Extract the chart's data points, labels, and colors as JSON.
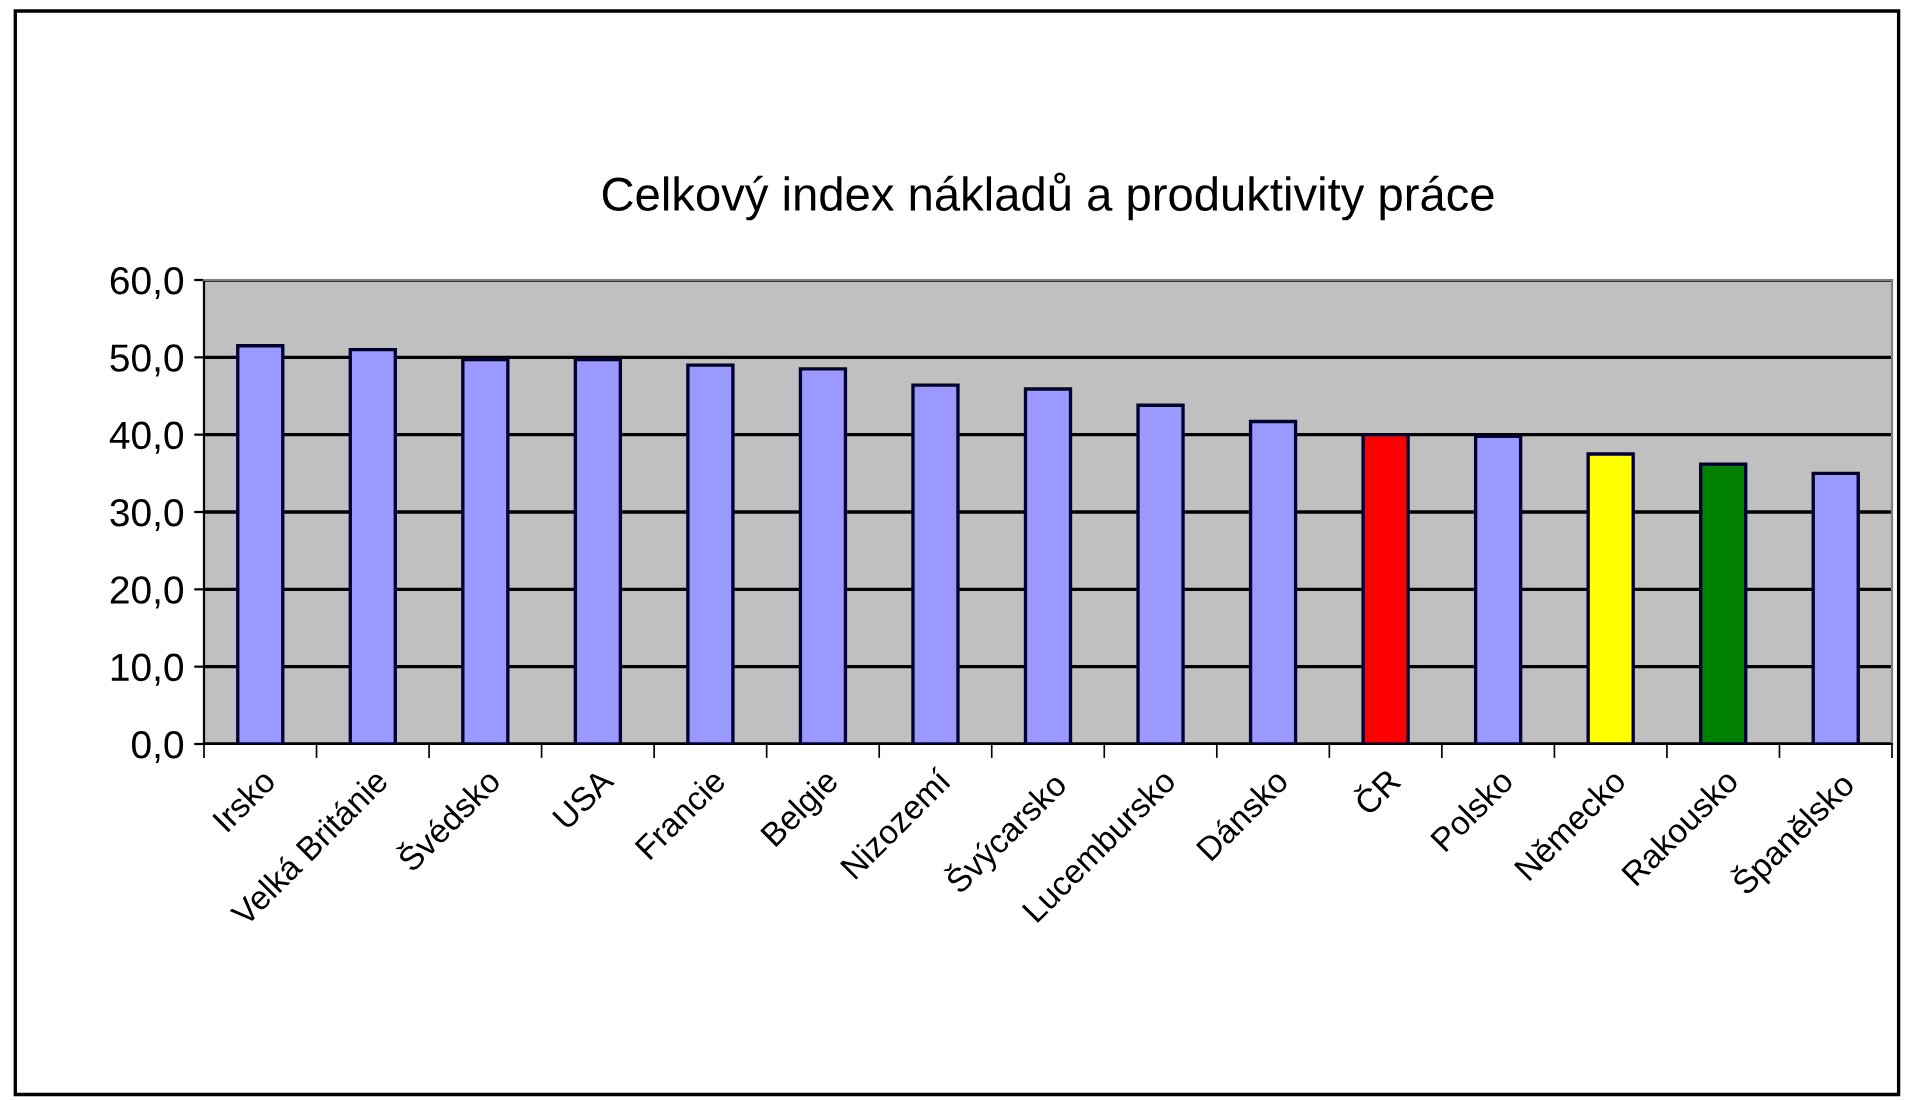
{
  "chart_data": {
    "type": "bar",
    "title": "Celkový index nákladů a produktivity práce",
    "categories": [
      "Irsko",
      "Velká Británie",
      "Švédsko",
      "USA",
      "Francie",
      "Belgie",
      "Nizozemí",
      "Švýcarsko",
      "Lucembursko",
      "Dánsko",
      "ČR",
      "Polsko",
      "Německo",
      "Rakousko",
      "Španělsko"
    ],
    "values": [
      51.5,
      51.0,
      49.7,
      49.7,
      49.0,
      48.5,
      46.4,
      45.9,
      43.8,
      41.7,
      40.0,
      39.8,
      37.5,
      36.2,
      35.0
    ],
    "colors": [
      "#9999ff",
      "#9999ff",
      "#9999ff",
      "#9999ff",
      "#9999ff",
      "#9999ff",
      "#9999ff",
      "#9999ff",
      "#9999ff",
      "#9999ff",
      "#ff0000",
      "#9999ff",
      "#ffff00",
      "#008000",
      "#9999ff"
    ],
    "ylim": [
      0,
      60
    ],
    "yticks": [
      {
        "value": 0,
        "label": "0,0"
      },
      {
        "value": 10,
        "label": "10,0"
      },
      {
        "value": 20,
        "label": "20,0"
      },
      {
        "value": 30,
        "label": "30,0"
      },
      {
        "value": 40,
        "label": "40,0"
      },
      {
        "value": 50,
        "label": "50,0"
      },
      {
        "value": 60,
        "label": "60,0"
      }
    ],
    "grid": "y",
    "legend": false
  }
}
